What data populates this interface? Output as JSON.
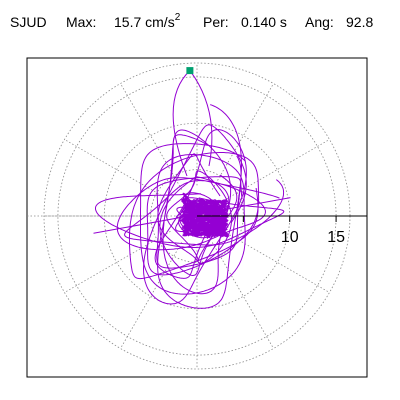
{
  "header": {
    "station": "SJUD",
    "max_label": "Max:",
    "max_value": "15.7 cm/s",
    "max_exp": "2",
    "per_label": "Per:",
    "per_value": "0.140 s",
    "ang_label": "Ang:",
    "ang_value": "92.8"
  },
  "chart_data": {
    "type": "line",
    "title": "",
    "radial_ticks": [
      5,
      10,
      15
    ],
    "tick_labels": [
      "10",
      "15"
    ],
    "rmax": 16.5,
    "grid": "dotted polar",
    "peak": {
      "amplitude": 15.7,
      "angle_deg": 92.8,
      "color": "#00a070"
    },
    "trace_color": "#9400d3",
    "series": [
      {
        "loops": [
          {
            "amp_e": 4.8,
            "amp_n": 11.5,
            "phase": 0.3,
            "cycles": 2
          },
          {
            "amp_e": 9.5,
            "amp_n": 4.5,
            "phase": 1.1,
            "cycles": 2
          },
          {
            "amp_e": 7.0,
            "amp_n": 8.5,
            "phase": 0.7,
            "cycles": 2
          },
          {
            "amp_e": 5.0,
            "amp_n": 10.0,
            "phase": 2.2,
            "cycles": 2
          },
          {
            "amp_e": 10.5,
            "amp_n": 3.0,
            "phase": 0.1,
            "cycles": 1
          },
          {
            "amp_e": 8.0,
            "amp_n": 7.0,
            "phase": 1.6,
            "cycles": 2
          },
          {
            "amp_e": 3.5,
            "amp_n": 6.0,
            "phase": 0.9,
            "cycles": 3
          },
          {
            "amp_e": 2.0,
            "amp_n": 2.0,
            "phase": 0.5,
            "cycles": 6
          }
        ]
      }
    ]
  }
}
